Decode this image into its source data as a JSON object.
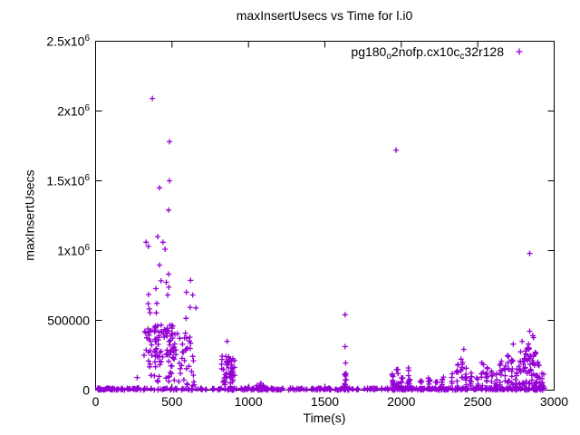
{
  "title": "maxInsertUsecs vs Time for l.i0",
  "axes": {
    "x_label": "Time(s)",
    "y_label": "maxInsertUsecs"
  },
  "legend": {
    "display_name": "pg180o2nofp.cx10cc32r128",
    "parts": [
      {
        "text": "pg180",
        "sub": false
      },
      {
        "text": "o",
        "sub": true
      },
      {
        "text": "2nofp.cx10c",
        "sub": false
      },
      {
        "text": "c",
        "sub": true
      },
      {
        "text": "32r128",
        "sub": false
      }
    ],
    "marker": "+",
    "marker_color": "#9400d3"
  },
  "chart_data": {
    "type": "scatter",
    "title": "maxInsertUsecs vs Time for l.i0",
    "xlabel": "Time(s)",
    "ylabel": "maxInsertUsecs",
    "xlim": [
      0,
      3000
    ],
    "ylim": [
      0,
      2500000
    ],
    "grid": false,
    "legend_position": "top-right-inside",
    "marker": "plus",
    "color": "#9400d3",
    "xticks": [
      {
        "value": 0,
        "label": "0"
      },
      {
        "value": 500,
        "label": "500"
      },
      {
        "value": 1000,
        "label": "1000"
      },
      {
        "value": 1500,
        "label": "1500"
      },
      {
        "value": 2000,
        "label": "2000"
      },
      {
        "value": 2500,
        "label": "2500"
      },
      {
        "value": 3000,
        "label": "3000"
      }
    ],
    "yticks": [
      {
        "value": 0,
        "label": "0"
      },
      {
        "value": 500000,
        "label": "500000"
      },
      {
        "value": 1000000,
        "label": "1x10^6"
      },
      {
        "value": 1500000,
        "label": "1.5x10^6"
      },
      {
        "value": 2000000,
        "label": "2x10^6"
      },
      {
        "value": 2500000,
        "label": "2.5x10^6"
      }
    ],
    "series_name": "pg180o2nofp.cx10cc32r128",
    "notable_points": [
      [
        371,
        2090000
      ],
      [
        483,
        1780000
      ],
      [
        483,
        1500000
      ],
      [
        418,
        1450000
      ],
      [
        477,
        1290000
      ],
      [
        330,
        1060000
      ],
      [
        406,
        1100000
      ],
      [
        441,
        1060000
      ],
      [
        345,
        1030000
      ],
      [
        455,
        1010000
      ],
      [
        418,
        896000
      ],
      [
        477,
        831000
      ],
      [
        394,
        727000
      ],
      [
        594,
        701000
      ],
      [
        635,
        682000
      ],
      [
        272,
        90000
      ],
      [
        860,
        350000
      ],
      [
        1632,
        540000
      ],
      [
        1632,
        312000
      ],
      [
        1636,
        195000
      ],
      [
        1966,
        1720000
      ],
      [
        2840,
        980000
      ],
      [
        2840,
        422000
      ],
      [
        2790,
        350000
      ],
      [
        2860,
        390000
      ],
      [
        2732,
        330000
      ],
      [
        2409,
        292000
      ]
    ],
    "clusters": [
      {
        "kind": "band",
        "t": [
          10,
          330
        ],
        "v": [
          0,
          16000
        ],
        "n": 70
      },
      {
        "kind": "band",
        "t": [
          332,
          858
        ],
        "v": [
          0,
          15000
        ],
        "n": 52
      },
      {
        "kind": "band",
        "t": [
          860,
          1900
        ],
        "v": [
          0,
          15000
        ],
        "n": 165
      },
      {
        "kind": "band",
        "t": [
          1900,
          2945
        ],
        "v": [
          0,
          17000
        ],
        "n": 180
      },
      {
        "kind": "blob",
        "t": [
          315,
          510
        ],
        "v": [
          200000,
          470000
        ],
        "n": 85
      },
      {
        "kind": "blob",
        "t": [
          500,
          625
        ],
        "v": [
          210000,
          430000
        ],
        "n": 26
      },
      {
        "kind": "blob",
        "t": [
          330,
          630
        ],
        "v": [
          30000,
          195000
        ],
        "n": 30
      },
      {
        "kind": "blob",
        "t": [
          340,
          660
        ],
        "v": [
          500000,
          790000
        ],
        "n": 14
      },
      {
        "kind": "blob",
        "t": [
          822,
          912
        ],
        "v": [
          18000,
          255000
        ],
        "n": 48
      },
      {
        "kind": "blob",
        "t": [
          1055,
          1105
        ],
        "v": [
          4000,
          62000
        ],
        "n": 12
      },
      {
        "kind": "blob",
        "t": [
          1930,
          2090
        ],
        "v": [
          3000,
          60000
        ],
        "n": 14
      },
      {
        "kind": "column",
        "t": 640,
        "vmax": 250000,
        "n": 6
      },
      {
        "kind": "column",
        "t": 1634,
        "vmax": 120000,
        "n": 12
      },
      {
        "kind": "column",
        "t": 1945,
        "vmax": 120000,
        "n": 8
      },
      {
        "kind": "column",
        "t": 1975,
        "vmax": 150000,
        "n": 8
      },
      {
        "kind": "column",
        "t": 2005,
        "vmax": 90000,
        "n": 6
      },
      {
        "kind": "column",
        "t": 2050,
        "vmax": 160000,
        "n": 8
      },
      {
        "kind": "column",
        "t": 2130,
        "vmax": 70000,
        "n": 5
      },
      {
        "kind": "column",
        "t": 2180,
        "vmax": 90000,
        "n": 6
      },
      {
        "kind": "column",
        "t": 2230,
        "vmax": 60000,
        "n": 5
      },
      {
        "kind": "column",
        "t": 2270,
        "vmax": 100000,
        "n": 6
      },
      {
        "kind": "column",
        "t": 2330,
        "vmax": 120000,
        "n": 7
      },
      {
        "kind": "column",
        "t": 2365,
        "vmax": 190000,
        "n": 9
      },
      {
        "kind": "column",
        "t": 2395,
        "vmax": 230000,
        "n": 9
      },
      {
        "kind": "column",
        "t": 2425,
        "vmax": 160000,
        "n": 8
      },
      {
        "kind": "column",
        "t": 2455,
        "vmax": 130000,
        "n": 7
      },
      {
        "kind": "column",
        "t": 2500,
        "vmax": 90000,
        "n": 6
      },
      {
        "kind": "column",
        "t": 2530,
        "vmax": 200000,
        "n": 9
      },
      {
        "kind": "column",
        "t": 2560,
        "vmax": 170000,
        "n": 8
      },
      {
        "kind": "column",
        "t": 2590,
        "vmax": 140000,
        "n": 7
      },
      {
        "kind": "column",
        "t": 2620,
        "vmax": 120000,
        "n": 7
      },
      {
        "kind": "column",
        "t": 2650,
        "vmax": 210000,
        "n": 9
      },
      {
        "kind": "column",
        "t": 2675,
        "vmax": 180000,
        "n": 8
      },
      {
        "kind": "column",
        "t": 2700,
        "vmax": 250000,
        "n": 10
      },
      {
        "kind": "column",
        "t": 2725,
        "vmax": 220000,
        "n": 9
      },
      {
        "kind": "column",
        "t": 2750,
        "vmax": 160000,
        "n": 8
      },
      {
        "kind": "column",
        "t": 2775,
        "vmax": 280000,
        "n": 10
      },
      {
        "kind": "column",
        "t": 2800,
        "vmax": 240000,
        "n": 10
      },
      {
        "kind": "column",
        "t": 2815,
        "vmax": 300000,
        "n": 10
      },
      {
        "kind": "column",
        "t": 2830,
        "vmax": 330000,
        "n": 11
      },
      {
        "kind": "column",
        "t": 2845,
        "vmax": 260000,
        "n": 10
      },
      {
        "kind": "column",
        "t": 2860,
        "vmax": 390000,
        "n": 11
      },
      {
        "kind": "column",
        "t": 2875,
        "vmax": 290000,
        "n": 10
      },
      {
        "kind": "column",
        "t": 2890,
        "vmax": 200000,
        "n": 9
      },
      {
        "kind": "column",
        "t": 2905,
        "vmax": 180000,
        "n": 8
      },
      {
        "kind": "column",
        "t": 2925,
        "vmax": 120000,
        "n": 7
      }
    ]
  }
}
